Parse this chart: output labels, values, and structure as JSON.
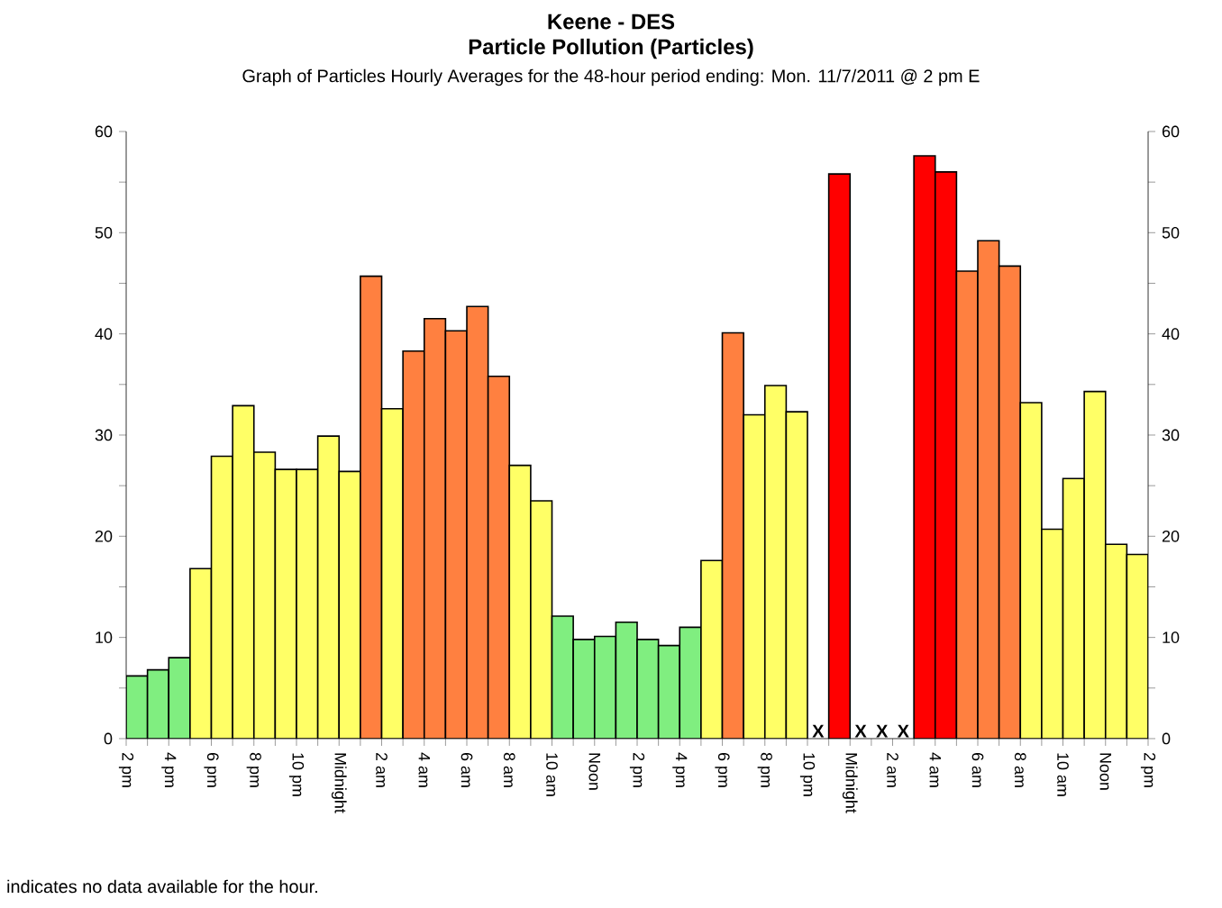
{
  "chart_data": {
    "type": "bar",
    "title": "Keene - DES",
    "subtitle": "Particle Pollution (Particles)",
    "x": [
      "2011-11-05T14:30",
      "2011-11-05T15:30",
      "2011-11-05T16:30",
      "2011-11-05T17:30",
      "2011-11-05T18:30",
      "2011-11-05T19:30",
      "2011-11-05T20:30",
      "2011-11-05T21:30",
      "2011-11-05T22:30",
      "2011-11-05T23:30",
      "2011-11-06T00:30",
      "2011-11-06T01:30",
      "2011-11-06T02:30",
      "2011-11-06T03:30",
      "2011-11-06T04:30",
      "2011-11-06T05:30",
      "2011-11-06T06:30",
      "2011-11-06T07:30",
      "2011-11-06T08:30",
      "2011-11-06T09:30",
      "2011-11-06T10:30",
      "2011-11-06T11:30",
      "2011-11-06T12:30",
      "2011-11-06T13:30",
      "2011-11-06T14:30",
      "2011-11-06T15:30",
      "2011-11-06T16:30",
      "2011-11-06T17:30",
      "2011-11-06T18:30",
      "2011-11-06T19:30",
      "2011-11-06T20:30",
      "2011-11-06T21:30",
      "2011-11-06T22:30",
      "2011-11-06T23:30",
      "2011-11-07T00:30",
      "2011-11-07T01:30",
      "2011-11-07T02:30",
      "2011-11-07T03:30",
      "2011-11-07T04:30",
      "2011-11-07T05:30",
      "2011-11-07T06:30",
      "2011-11-07T07:30",
      "2011-11-07T08:30",
      "2011-11-07T09:30",
      "2011-11-07T10:30",
      "2011-11-07T11:30",
      "2011-11-07T12:30",
      "2011-11-07T13:30"
    ],
    "values": [
      6.2,
      6.8,
      8.0,
      16.8,
      27.9,
      32.9,
      28.3,
      26.6,
      26.6,
      29.9,
      26.4,
      45.7,
      32.6,
      38.3,
      41.5,
      40.3,
      42.7,
      35.8,
      27.0,
      23.5,
      12.1,
      9.8,
      10.1,
      11.5,
      9.8,
      9.2,
      11.0,
      17.6,
      40.1,
      32.0,
      34.9,
      32.3,
      null,
      55.8,
      null,
      null,
      null,
      57.6,
      56.0,
      46.2,
      49.2,
      46.7,
      33.2,
      20.7,
      25.7,
      34.3,
      19.2,
      18.2
    ],
    "colors": [
      "#80ee80",
      "#80ee80",
      "#80ee80",
      "#ffff66",
      "#ffff66",
      "#ffff66",
      "#ffff66",
      "#ffff66",
      "#ffff66",
      "#ffff66",
      "#ffff66",
      "#ff8040",
      "#ffff66",
      "#ff8040",
      "#ff8040",
      "#ff8040",
      "#ff8040",
      "#ff8040",
      "#ffff66",
      "#ffff66",
      "#80ee80",
      "#80ee80",
      "#80ee80",
      "#80ee80",
      "#80ee80",
      "#80ee80",
      "#80ee80",
      "#ffff66",
      "#ff8040",
      "#ffff66",
      "#ffff66",
      "#ffff66",
      "#ffffff",
      "#ff0000",
      "#ffffff",
      "#ffffff",
      "#ffffff",
      "#ff0000",
      "#ff0000",
      "#ff8040",
      "#ff8040",
      "#ff8040",
      "#ffff66",
      "#ffff66",
      "#ffff66",
      "#ffff66",
      "#ffff66",
      "#ffff66"
    ],
    "xlim": [
      "2011-11-05T14:00",
      "2011-11-07T14:00"
    ],
    "xticks": [
      {
        "value": "2011-11-05T14:00",
        "label": "2 pm"
      },
      {
        "value": "2011-11-05T15:00",
        "label": null
      },
      {
        "value": "2011-11-05T16:00",
        "label": "4 pm"
      },
      {
        "value": "2011-11-05T17:00",
        "label": null
      },
      {
        "value": "2011-11-05T18:00",
        "label": "6 pm"
      },
      {
        "value": "2011-11-05T19:00",
        "label": null
      },
      {
        "value": "2011-11-05T20:00",
        "label": "8 pm"
      },
      {
        "value": "2011-11-05T21:00",
        "label": null
      },
      {
        "value": "2011-11-05T22:00",
        "label": "10 pm"
      },
      {
        "value": "2011-11-05T23:00",
        "label": null
      },
      {
        "value": "2011-11-06T00:00",
        "label": "Midnight"
      },
      {
        "value": "2011-11-06T01:00",
        "label": null
      },
      {
        "value": "2011-11-06T02:00",
        "label": "2 am"
      },
      {
        "value": "2011-11-06T03:00",
        "label": null
      },
      {
        "value": "2011-11-06T04:00",
        "label": "4 am"
      },
      {
        "value": "2011-11-06T05:00",
        "label": null
      },
      {
        "value": "2011-11-06T06:00",
        "label": "6 am"
      },
      {
        "value": "2011-11-06T07:00",
        "label": null
      },
      {
        "value": "2011-11-06T08:00",
        "label": "8 am"
      },
      {
        "value": "2011-11-06T09:00",
        "label": null
      },
      {
        "value": "2011-11-06T10:00",
        "label": "10 am"
      },
      {
        "value": "2011-11-06T11:00",
        "label": null
      },
      {
        "value": "2011-11-06T12:00",
        "label": "Noon"
      },
      {
        "value": "2011-11-06T13:00",
        "label": null
      },
      {
        "value": "2011-11-06T14:00",
        "label": "2 pm"
      },
      {
        "value": "2011-11-06T15:00",
        "label": null
      },
      {
        "value": "2011-11-06T16:00",
        "label": "4 pm"
      },
      {
        "value": "2011-11-06T17:00",
        "label": null
      },
      {
        "value": "2011-11-06T18:00",
        "label": "6 pm"
      },
      {
        "value": "2011-11-06T19:00",
        "label": null
      },
      {
        "value": "2011-11-06T20:00",
        "label": "8 pm"
      },
      {
        "value": "2011-11-06T21:00",
        "label": null
      },
      {
        "value": "2011-11-06T22:00",
        "label": "10 pm"
      },
      {
        "value": "2011-11-06T23:00",
        "label": null
      },
      {
        "value": "2011-11-07T00:00",
        "label": "Midnight"
      },
      {
        "value": "2011-11-07T01:00",
        "label": null
      },
      {
        "value": "2011-11-07T02:00",
        "label": "2 am"
      },
      {
        "value": "2011-11-07T03:00",
        "label": null
      },
      {
        "value": "2011-11-07T04:00",
        "label": "4 am"
      },
      {
        "value": "2011-11-07T05:00",
        "label": null
      },
      {
        "value": "2011-11-07T06:00",
        "label": "6 am"
      },
      {
        "value": "2011-11-07T07:00",
        "label": null
      },
      {
        "value": "2011-11-07T08:00",
        "label": "8 am"
      },
      {
        "value": "2011-11-07T09:00",
        "label": null
      },
      {
        "value": "2011-11-07T10:00",
        "label": "10 am"
      },
      {
        "value": "2011-11-07T11:00",
        "label": null
      },
      {
        "value": "2011-11-07T12:00",
        "label": "Noon"
      },
      {
        "value": "2011-11-07T13:00",
        "label": null
      },
      {
        "value": "2011-11-07T14:00",
        "label": "2 pm"
      }
    ],
    "ylim": [
      0,
      60
    ],
    "yticks": [
      0,
      {
        "value": 5,
        "label": null
      },
      10,
      {
        "value": 15,
        "label": null
      },
      20,
      {
        "value": 25,
        "label": null
      },
      30,
      {
        "value": 35,
        "label": null
      },
      40,
      {
        "value": 45,
        "label": null
      },
      50,
      {
        "value": 55,
        "label": null
      },
      60
    ],
    "y2lim": [
      0,
      60
    ],
    "y2ticks": [
      0,
      {
        "value": 5,
        "label": null
      },
      10,
      {
        "value": 15,
        "label": null
      },
      20,
      {
        "value": 25,
        "label": null
      },
      30,
      {
        "value": 35,
        "label": null
      },
      40,
      {
        "value": 45,
        "label": null
      },
      50,
      {
        "value": 55,
        "label": null
      },
      60
    ],
    "grid": false,
    "annotations": [
      "Graph of Particles Hourly Averages for the 48-hour period ending:  Mon. 11/7/2011 @ 2 pm E",
      "X",
      "X",
      "X",
      "X",
      "indicates no data available for the hour."
    ]
  }
}
